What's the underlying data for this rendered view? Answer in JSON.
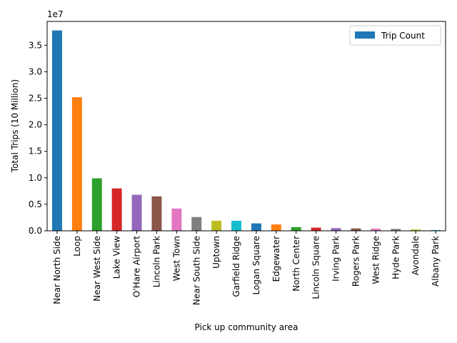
{
  "chart_data": {
    "type": "bar",
    "xlabel": "Pick up community area",
    "ylabel": "Total Trips (10 Million)",
    "offset_text": "1e7",
    "ylim": [
      0,
      39500000
    ],
    "y_ticks": [
      0,
      5000000,
      10000000,
      15000000,
      20000000,
      25000000,
      30000000,
      35000000
    ],
    "y_tick_labels": [
      "0.0",
      "0.5",
      "1.0",
      "1.5",
      "2.0",
      "2.5",
      "3.0",
      "3.5"
    ],
    "legend": {
      "position": "top-right",
      "label": "Trip Count",
      "color": "#1f77b4"
    },
    "categories": [
      "Near North Side",
      "Loop",
      "Near West Side",
      "Lake View",
      "O'Hare Airport",
      "Lincoln Park",
      "West Town",
      "Near South Side",
      "Uptown",
      "Garfield Ridge",
      "Logan Square",
      "Edgewater",
      "North Center",
      "Lincoln Square",
      "Irving Park",
      "Rogers Park",
      "West Ridge",
      "Hyde Park",
      "Avondale",
      "Albany Park"
    ],
    "series": [
      {
        "values": [
          37800000,
          25200000,
          9900000,
          8000000,
          6800000,
          6500000,
          4200000,
          2600000,
          1900000,
          1900000,
          1400000,
          1200000,
          700000,
          600000,
          500000,
          450000,
          400000,
          350000,
          250000,
          150000
        ]
      }
    ],
    "colors": [
      "#1f77b4",
      "#ff7f0e",
      "#2ca02c",
      "#d62728",
      "#9467bd",
      "#8c564b",
      "#e377c2",
      "#7f7f7f",
      "#bcbd22",
      "#17becf"
    ]
  }
}
